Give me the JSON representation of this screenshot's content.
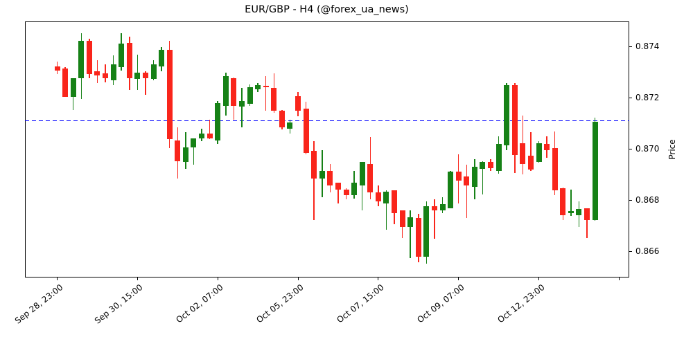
{
  "chart_data": {
    "type": "candlestick",
    "title": "EUR/GBP - H4 (@forex_ua_news)",
    "symbol": "EUR/GBP",
    "timeframe": "H4",
    "source_handle": "@forex_ua_news",
    "ylabel": "Price",
    "ylim": [
      0.865,
      0.875
    ],
    "grid": false,
    "legend_position": "none",
    "colors": {
      "up": "#168116",
      "down": "#f9251b",
      "hline": "#0000ff",
      "axis": "#000000"
    },
    "hline": {
      "value": 0.8711,
      "style": "dashed",
      "label": "last close level"
    },
    "y_ticks": [
      {
        "value": 0.866,
        "label": "0.866"
      },
      {
        "value": 0.868,
        "label": "0.868"
      },
      {
        "value": 0.87,
        "label": "0.870"
      },
      {
        "value": 0.872,
        "label": "0.872"
      },
      {
        "value": 0.874,
        "label": "0.874"
      }
    ],
    "x_ticks": [
      {
        "index": 0,
        "label": "Sep 28, 23:00"
      },
      {
        "index": 10,
        "label": "Sep 30, 15:00"
      },
      {
        "index": 20,
        "label": "Oct 02, 07:00"
      },
      {
        "index": 30,
        "label": "Oct 05, 23:00"
      },
      {
        "index": 40,
        "label": "Oct 07, 15:00"
      },
      {
        "index": 50,
        "label": "Oct 09, 07:00"
      },
      {
        "index": 60,
        "label": "Oct 12, 23:00"
      },
      {
        "index": 70,
        "label": ""
      }
    ],
    "candles": [
      {
        "o": 0.87324,
        "h": 0.87343,
        "l": 0.87292,
        "c": 0.87308
      },
      {
        "o": 0.87316,
        "h": 0.87319,
        "l": 0.87203,
        "c": 0.87205
      },
      {
        "o": 0.87203,
        "h": 0.87278,
        "l": 0.87154,
        "c": 0.87276
      },
      {
        "o": 0.87276,
        "h": 0.87454,
        "l": 0.87197,
        "c": 0.87424
      },
      {
        "o": 0.87424,
        "h": 0.8743,
        "l": 0.87278,
        "c": 0.87292
      },
      {
        "o": 0.87305,
        "h": 0.87346,
        "l": 0.87257,
        "c": 0.87289
      },
      {
        "o": 0.87297,
        "h": 0.8733,
        "l": 0.87262,
        "c": 0.87276
      },
      {
        "o": 0.8727,
        "h": 0.87365,
        "l": 0.87251,
        "c": 0.8733
      },
      {
        "o": 0.87319,
        "h": 0.87454,
        "l": 0.87308,
        "c": 0.87413
      },
      {
        "o": 0.87414,
        "h": 0.8744,
        "l": 0.87232,
        "c": 0.87278
      },
      {
        "o": 0.87273,
        "h": 0.8737,
        "l": 0.8723,
        "c": 0.873
      },
      {
        "o": 0.873,
        "h": 0.87303,
        "l": 0.87213,
        "c": 0.87278
      },
      {
        "o": 0.87273,
        "h": 0.87346,
        "l": 0.87268,
        "c": 0.8733
      },
      {
        "o": 0.87324,
        "h": 0.874,
        "l": 0.87305,
        "c": 0.87389
      },
      {
        "o": 0.87389,
        "h": 0.87424,
        "l": 0.87005,
        "c": 0.8704
      },
      {
        "o": 0.87035,
        "h": 0.87084,
        "l": 0.86886,
        "c": 0.86954
      },
      {
        "o": 0.86951,
        "h": 0.87065,
        "l": 0.86924,
        "c": 0.87008
      },
      {
        "o": 0.87008,
        "h": 0.87043,
        "l": 0.86938,
        "c": 0.87041
      },
      {
        "o": 0.87043,
        "h": 0.87081,
        "l": 0.87032,
        "c": 0.87062
      },
      {
        "o": 0.8706,
        "h": 0.87116,
        "l": 0.87038,
        "c": 0.87043
      },
      {
        "o": 0.87035,
        "h": 0.87187,
        "l": 0.87019,
        "c": 0.87181
      },
      {
        "o": 0.8717,
        "h": 0.873,
        "l": 0.8713,
        "c": 0.87284
      },
      {
        "o": 0.87278,
        "h": 0.87281,
        "l": 0.87116,
        "c": 0.87168
      },
      {
        "o": 0.87165,
        "h": 0.87238,
        "l": 0.87086,
        "c": 0.87189
      },
      {
        "o": 0.87178,
        "h": 0.87254,
        "l": 0.8717,
        "c": 0.87243
      },
      {
        "o": 0.87235,
        "h": 0.87259,
        "l": 0.87222,
        "c": 0.87249
      },
      {
        "o": 0.87246,
        "h": 0.87284,
        "l": 0.87149,
        "c": 0.87241
      },
      {
        "o": 0.87238,
        "h": 0.87297,
        "l": 0.87143,
        "c": 0.87149
      },
      {
        "o": 0.87151,
        "h": 0.87154,
        "l": 0.87076,
        "c": 0.87084
      },
      {
        "o": 0.87081,
        "h": 0.87114,
        "l": 0.8706,
        "c": 0.87105
      },
      {
        "o": 0.87208,
        "h": 0.87224,
        "l": 0.87127,
        "c": 0.87149
      },
      {
        "o": 0.87157,
        "h": 0.87184,
        "l": 0.86981,
        "c": 0.86986
      },
      {
        "o": 0.86992,
        "h": 0.87032,
        "l": 0.86724,
        "c": 0.86884
      },
      {
        "o": 0.86884,
        "h": 0.86997,
        "l": 0.86811,
        "c": 0.86914
      },
      {
        "o": 0.86916,
        "h": 0.86941,
        "l": 0.86832,
        "c": 0.86859
      },
      {
        "o": 0.86868,
        "h": 0.8687,
        "l": 0.86789,
        "c": 0.86843
      },
      {
        "o": 0.86843,
        "h": 0.86846,
        "l": 0.86803,
        "c": 0.86819
      },
      {
        "o": 0.86819,
        "h": 0.86914,
        "l": 0.86808,
        "c": 0.8687
      },
      {
        "o": 0.86859,
        "h": 0.86951,
        "l": 0.86762,
        "c": 0.86949
      },
      {
        "o": 0.86943,
        "h": 0.87046,
        "l": 0.86803,
        "c": 0.8683
      },
      {
        "o": 0.86832,
        "h": 0.86859,
        "l": 0.86778,
        "c": 0.86797
      },
      {
        "o": 0.86789,
        "h": 0.86838,
        "l": 0.86684,
        "c": 0.86835
      },
      {
        "o": 0.86838,
        "h": 0.8684,
        "l": 0.86708,
        "c": 0.86749
      },
      {
        "o": 0.8676,
        "h": 0.86762,
        "l": 0.86654,
        "c": 0.86695
      },
      {
        "o": 0.86697,
        "h": 0.86762,
        "l": 0.86573,
        "c": 0.86735
      },
      {
        "o": 0.8673,
        "h": 0.86746,
        "l": 0.86559,
        "c": 0.86581
      },
      {
        "o": 0.86581,
        "h": 0.86795,
        "l": 0.86554,
        "c": 0.86778
      },
      {
        "o": 0.86776,
        "h": 0.86805,
        "l": 0.86649,
        "c": 0.86762
      },
      {
        "o": 0.8676,
        "h": 0.86811,
        "l": 0.86751,
        "c": 0.86784
      },
      {
        "o": 0.8677,
        "h": 0.86914,
        "l": 0.86768,
        "c": 0.86911
      },
      {
        "o": 0.86911,
        "h": 0.86981,
        "l": 0.86789,
        "c": 0.86878
      },
      {
        "o": 0.86892,
        "h": 0.86938,
        "l": 0.86732,
        "c": 0.86859
      },
      {
        "o": 0.86854,
        "h": 0.8696,
        "l": 0.86803,
        "c": 0.86932
      },
      {
        "o": 0.86924,
        "h": 0.86954,
        "l": 0.86824,
        "c": 0.86951
      },
      {
        "o": 0.86951,
        "h": 0.8696,
        "l": 0.86914,
        "c": 0.86927
      },
      {
        "o": 0.86914,
        "h": 0.87049,
        "l": 0.86905,
        "c": 0.87019
      },
      {
        "o": 0.87014,
        "h": 0.87259,
        "l": 0.86995,
        "c": 0.87251
      },
      {
        "o": 0.87249,
        "h": 0.87257,
        "l": 0.86908,
        "c": 0.86978
      },
      {
        "o": 0.87022,
        "h": 0.87132,
        "l": 0.869,
        "c": 0.86941
      },
      {
        "o": 0.86973,
        "h": 0.87065,
        "l": 0.86914,
        "c": 0.86919
      },
      {
        "o": 0.86951,
        "h": 0.87032,
        "l": 0.86946,
        "c": 0.87022
      },
      {
        "o": 0.87019,
        "h": 0.87049,
        "l": 0.86965,
        "c": 0.86995
      },
      {
        "o": 0.87003,
        "h": 0.87068,
        "l": 0.86819,
        "c": 0.8684
      },
      {
        "o": 0.86846,
        "h": 0.86849,
        "l": 0.86722,
        "c": 0.86743
      },
      {
        "o": 0.86749,
        "h": 0.86843,
        "l": 0.86738,
        "c": 0.86757
      },
      {
        "o": 0.86743,
        "h": 0.86795,
        "l": 0.86697,
        "c": 0.86765
      },
      {
        "o": 0.86768,
        "h": 0.8677,
        "l": 0.86654,
        "c": 0.86724
      },
      {
        "o": 0.86724,
        "h": 0.87122,
        "l": 0.86719,
        "c": 0.87108
      }
    ]
  }
}
